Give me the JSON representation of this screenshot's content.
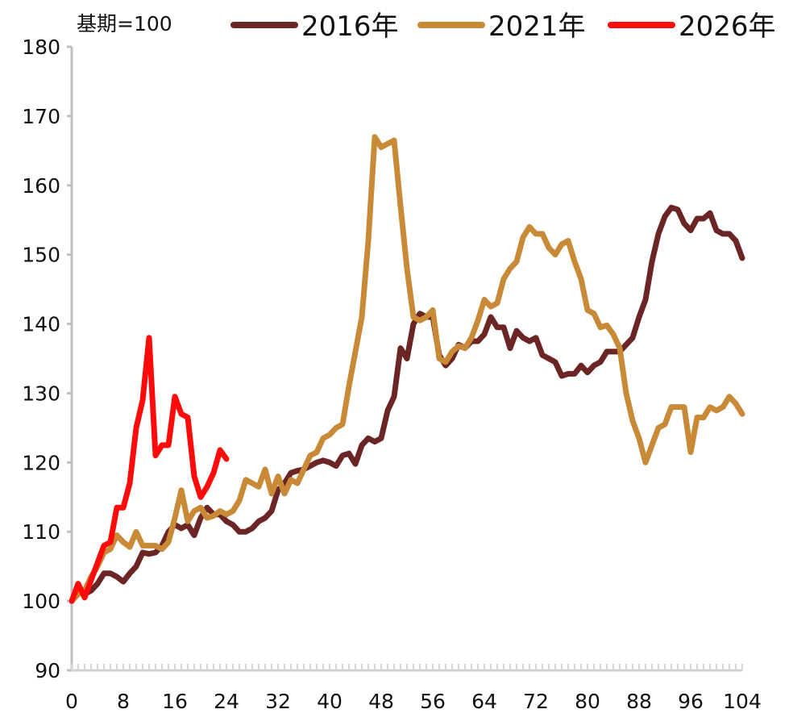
{
  "chart_data": {
    "type": "line",
    "title": "",
    "xlabel": "",
    "ylabel": "",
    "note": "基期=100",
    "xlim": [
      0,
      104
    ],
    "ylim": [
      90,
      180
    ],
    "x_ticks": [
      0,
      8,
      16,
      24,
      32,
      40,
      48,
      56,
      64,
      72,
      80,
      88,
      96,
      104
    ],
    "y_ticks": [
      90,
      100,
      110,
      120,
      130,
      140,
      150,
      160,
      170,
      180
    ],
    "grid": false,
    "legend_position": "top",
    "series": [
      {
        "name": "2016年",
        "color": "#6b2525",
        "points": [
          [
            0,
            100
          ],
          [
            1,
            101.5
          ],
          [
            2,
            101
          ],
          [
            3,
            101.5
          ],
          [
            4,
            102.5
          ],
          [
            5,
            104
          ],
          [
            6,
            104
          ],
          [
            7,
            103.5
          ],
          [
            8,
            102.8
          ],
          [
            9,
            104
          ],
          [
            10,
            105
          ],
          [
            11,
            107
          ],
          [
            12,
            106.8
          ],
          [
            13,
            107
          ],
          [
            14,
            108
          ],
          [
            15,
            110
          ],
          [
            16,
            111
          ],
          [
            17,
            110.5
          ],
          [
            18,
            111
          ],
          [
            19,
            109.5
          ],
          [
            20,
            112
          ],
          [
            21,
            113.5
          ],
          [
            22,
            112.5
          ],
          [
            23,
            112.5
          ],
          [
            24,
            111.5
          ],
          [
            25,
            111
          ],
          [
            26,
            110
          ],
          [
            27,
            110
          ],
          [
            28,
            110.5
          ],
          [
            29,
            111.5
          ],
          [
            30,
            112
          ],
          [
            31,
            113
          ],
          [
            32,
            116
          ],
          [
            33,
            117
          ],
          [
            34,
            118.5
          ],
          [
            35,
            118.8
          ],
          [
            36,
            119
          ],
          [
            37,
            119.5
          ],
          [
            38,
            120
          ],
          [
            39,
            120.3
          ],
          [
            40,
            120
          ],
          [
            41,
            119.5
          ],
          [
            42,
            121
          ],
          [
            43,
            121.3
          ],
          [
            44,
            119.8
          ],
          [
            45,
            122.5
          ],
          [
            46,
            123.5
          ],
          [
            47,
            123
          ],
          [
            48,
            123.5
          ],
          [
            49,
            127.5
          ],
          [
            50,
            129.5
          ],
          [
            51,
            136.5
          ],
          [
            52,
            135
          ],
          [
            53,
            140
          ],
          [
            54,
            141.5
          ],
          [
            55,
            141
          ],
          [
            56,
            141
          ],
          [
            57,
            135.5
          ],
          [
            58,
            134
          ],
          [
            59,
            135
          ],
          [
            60,
            137
          ],
          [
            61,
            136.5
          ],
          [
            62,
            137.5
          ],
          [
            63,
            137.5
          ],
          [
            64,
            138.5
          ],
          [
            65,
            141
          ],
          [
            66,
            139.5
          ],
          [
            67,
            139.5
          ],
          [
            68,
            136.5
          ],
          [
            69,
            139
          ],
          [
            70,
            138
          ],
          [
            71,
            137.5
          ],
          [
            72,
            138
          ],
          [
            73,
            135.5
          ],
          [
            74,
            135
          ],
          [
            75,
            134.5
          ],
          [
            76,
            132.5
          ],
          [
            77,
            132.8
          ],
          [
            78,
            132.8
          ],
          [
            79,
            134
          ],
          [
            80,
            133
          ],
          [
            81,
            134
          ],
          [
            82,
            134.5
          ],
          [
            83,
            136
          ],
          [
            84,
            136
          ],
          [
            85,
            136
          ],
          [
            86,
            137
          ],
          [
            87,
            138
          ],
          [
            88,
            141
          ],
          [
            89,
            143.5
          ],
          [
            90,
            149
          ],
          [
            91,
            153
          ],
          [
            92,
            155.5
          ],
          [
            93,
            156.8
          ],
          [
            94,
            156.5
          ],
          [
            95,
            154.5
          ],
          [
            96,
            153.5
          ],
          [
            97,
            155.2
          ],
          [
            98,
            155.2
          ],
          [
            99,
            156
          ],
          [
            100,
            153.5
          ],
          [
            101,
            153
          ],
          [
            102,
            153
          ],
          [
            103,
            152
          ],
          [
            104,
            149.5
          ]
        ]
      },
      {
        "name": "2021年",
        "color": "#c98a37",
        "points": [
          [
            0,
            100
          ],
          [
            1,
            101
          ],
          [
            2,
            101.5
          ],
          [
            3,
            103.5
          ],
          [
            4,
            105
          ],
          [
            5,
            107
          ],
          [
            6,
            107.5
          ],
          [
            7,
            109.5
          ],
          [
            8,
            108.5
          ],
          [
            9,
            107.8
          ],
          [
            10,
            110
          ],
          [
            11,
            108
          ],
          [
            12,
            108
          ],
          [
            13,
            108
          ],
          [
            14,
            107.5
          ],
          [
            15,
            108.5
          ],
          [
            16,
            112
          ],
          [
            17,
            116
          ],
          [
            18,
            111.5
          ],
          [
            19,
            113
          ],
          [
            20,
            113.5
          ],
          [
            21,
            112
          ],
          [
            22,
            112.3
          ],
          [
            23,
            113
          ],
          [
            24,
            112.5
          ],
          [
            25,
            113
          ],
          [
            26,
            114.5
          ],
          [
            27,
            117.5
          ],
          [
            28,
            117
          ],
          [
            29,
            116.5
          ],
          [
            30,
            119
          ],
          [
            31,
            115.5
          ],
          [
            32,
            118
          ],
          [
            33,
            115.5
          ],
          [
            34,
            117.5
          ],
          [
            35,
            117
          ],
          [
            36,
            119
          ],
          [
            37,
            121
          ],
          [
            38,
            121.5
          ],
          [
            39,
            123.5
          ],
          [
            40,
            124
          ],
          [
            41,
            125
          ],
          [
            42,
            125.5
          ],
          [
            43,
            131
          ],
          [
            44,
            136
          ],
          [
            45,
            141
          ],
          [
            46,
            152
          ],
          [
            47,
            167
          ],
          [
            48,
            165.5
          ],
          [
            49,
            166
          ],
          [
            50,
            166.5
          ],
          [
            51,
            157
          ],
          [
            52,
            148
          ],
          [
            53,
            141
          ],
          [
            54,
            140.5
          ],
          [
            55,
            141
          ],
          [
            56,
            142
          ],
          [
            57,
            135
          ],
          [
            58,
            134.5
          ],
          [
            59,
            136
          ],
          [
            60,
            136.8
          ],
          [
            61,
            136.5
          ],
          [
            62,
            138
          ],
          [
            63,
            140.5
          ],
          [
            64,
            143.5
          ],
          [
            65,
            142.5
          ],
          [
            66,
            143
          ],
          [
            67,
            146.5
          ],
          [
            68,
            148
          ],
          [
            69,
            149
          ],
          [
            70,
            152.5
          ],
          [
            71,
            154
          ],
          [
            72,
            153
          ],
          [
            73,
            153
          ],
          [
            74,
            151
          ],
          [
            75,
            150
          ],
          [
            76,
            151.5
          ],
          [
            77,
            152
          ],
          [
            78,
            149
          ],
          [
            79,
            146.5
          ],
          [
            80,
            142
          ],
          [
            81,
            141.5
          ],
          [
            82,
            139.5
          ],
          [
            83,
            139.8
          ],
          [
            84,
            138.5
          ],
          [
            85,
            136.5
          ],
          [
            86,
            130
          ],
          [
            87,
            126
          ],
          [
            88,
            123.5
          ],
          [
            89,
            120
          ],
          [
            90,
            122.5
          ],
          [
            91,
            125
          ],
          [
            92,
            125.5
          ],
          [
            93,
            128
          ],
          [
            94,
            128
          ],
          [
            95,
            128
          ],
          [
            96,
            121.5
          ],
          [
            97,
            126.5
          ],
          [
            98,
            126.5
          ],
          [
            99,
            128
          ],
          [
            100,
            127.5
          ],
          [
            101,
            128
          ],
          [
            102,
            129.5
          ],
          [
            103,
            128.5
          ],
          [
            104,
            127
          ]
        ]
      },
      {
        "name": "2026年",
        "color": "#ff0a0a",
        "points": [
          [
            0,
            100
          ],
          [
            1,
            102.5
          ],
          [
            2,
            100.5
          ],
          [
            3,
            103
          ],
          [
            4,
            105.5
          ],
          [
            5,
            108
          ],
          [
            6,
            108.5
          ],
          [
            7,
            113.5
          ],
          [
            8,
            113.5
          ],
          [
            9,
            117
          ],
          [
            10,
            125
          ],
          [
            11,
            129
          ],
          [
            12,
            138
          ],
          [
            13,
            121
          ],
          [
            14,
            122.5
          ],
          [
            15,
            122.5
          ],
          [
            16,
            129.5
          ],
          [
            17,
            127
          ],
          [
            18,
            126.5
          ],
          [
            19,
            118
          ],
          [
            20,
            115
          ],
          [
            21,
            116.5
          ],
          [
            22,
            118.5
          ],
          [
            23,
            121.8
          ],
          [
            24,
            120.5
          ]
        ]
      }
    ]
  }
}
